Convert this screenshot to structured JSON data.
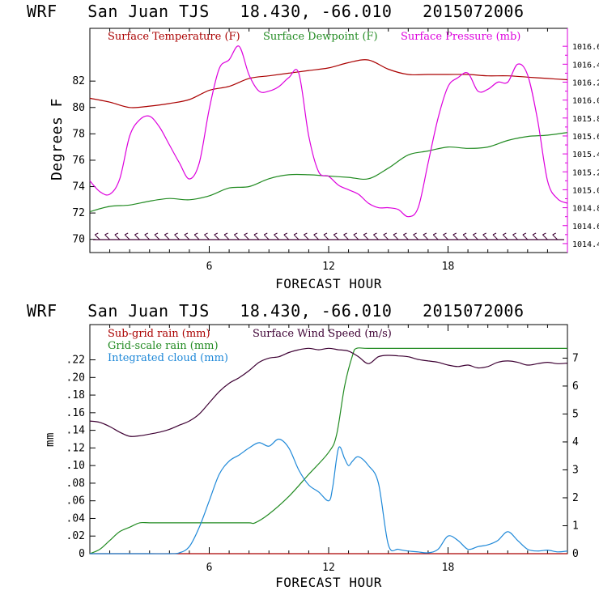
{
  "colors": {
    "temperature": "#aa0000",
    "dewpoint": "#228b22",
    "pressure": "#dd00dd",
    "wind_speed": "#3d0033",
    "subgrid_rain": "#aa0000",
    "gridscale_rain": "#228b22",
    "cloud": "#1e88d8",
    "wind_barbs": "#3d0033"
  },
  "chart_data": [
    {
      "type": "line",
      "title": "WRF   San Juan TJS   18.430, -66.010   2015072006",
      "xlabel": "FORECAST HOUR",
      "ylabel": "Degrees F",
      "xlim": [
        0,
        24
      ],
      "ylim": [
        69,
        86
      ],
      "y2lim": [
        1014.3,
        1016.8
      ],
      "x_ticks": [
        6,
        12,
        18
      ],
      "y_ticks": [
        70,
        72,
        74,
        76,
        78,
        80,
        82
      ],
      "y_tick_labels": [
        "70",
        "72",
        "74",
        "76",
        "78",
        "80",
        "82"
      ],
      "y2_ticks": [
        1014.4,
        1014.6,
        1014.8,
        1015.0,
        1015.2,
        1015.4,
        1015.6,
        1015.8,
        1016.0,
        1016.2,
        1016.4,
        1016.6
      ],
      "y2_tick_labels": [
        "1014.4",
        "1014.6",
        "1014.8",
        "1015.0",
        "1015.2",
        "1015.4",
        "1015.6",
        "1015.8",
        "1016.0",
        "1016.2",
        "1016.4",
        "1016.6"
      ],
      "legend": [
        "Surface Temperature (F)",
        "Surface Dewpoint (F)",
        "Surface Pressure (mb)"
      ],
      "series": [
        {
          "name": "Surface Temperature (F)",
          "axis": "left",
          "x": [
            0,
            1,
            2,
            3,
            4,
            5,
            6,
            7,
            8,
            9,
            10,
            11,
            12,
            13,
            14,
            15,
            16,
            17,
            18,
            19,
            20,
            21,
            22,
            23,
            24
          ],
          "values": [
            80.7,
            80.4,
            80.0,
            80.1,
            80.3,
            80.6,
            81.3,
            81.6,
            82.2,
            82.4,
            82.6,
            82.8,
            83.0,
            83.4,
            83.6,
            82.9,
            82.5,
            82.5,
            82.5,
            82.5,
            82.4,
            82.4,
            82.3,
            82.2,
            82.1
          ]
        },
        {
          "name": "Surface Dewpoint (F)",
          "axis": "left",
          "x": [
            0,
            1,
            2,
            3,
            4,
            5,
            6,
            7,
            8,
            9,
            10,
            11,
            12,
            13,
            14,
            15,
            16,
            17,
            18,
            19,
            20,
            21,
            22,
            23,
            24
          ],
          "values": [
            72.1,
            72.5,
            72.6,
            72.9,
            73.1,
            73.0,
            73.3,
            73.9,
            74.0,
            74.6,
            74.9,
            74.9,
            74.8,
            74.7,
            74.6,
            75.4,
            76.4,
            76.7,
            77.0,
            76.9,
            77.0,
            77.5,
            77.8,
            77.9,
            78.1
          ]
        },
        {
          "name": "Surface Pressure (mb)",
          "axis": "right",
          "x": [
            0,
            0.5,
            1,
            1.5,
            2,
            2.5,
            3,
            3.5,
            4,
            4.5,
            5,
            5.5,
            6,
            6.5,
            7,
            7.5,
            8,
            8.5,
            9,
            9.5,
            10,
            10.5,
            11,
            11.5,
            12,
            12.5,
            13,
            13.5,
            14,
            14.5,
            15,
            15.5,
            16,
            16.5,
            17,
            17.5,
            18,
            18.5,
            19,
            19.5,
            20,
            20.5,
            21,
            21.5,
            22,
            22.5,
            23,
            23.5,
            24
          ],
          "values": [
            1015.1,
            1014.98,
            1014.95,
            1015.12,
            1015.6,
            1015.78,
            1015.82,
            1015.7,
            1015.5,
            1015.3,
            1015.12,
            1015.3,
            1015.9,
            1016.35,
            1016.45,
            1016.6,
            1016.28,
            1016.1,
            1016.1,
            1016.15,
            1016.25,
            1016.3,
            1015.6,
            1015.2,
            1015.15,
            1015.05,
            1015.0,
            1014.95,
            1014.85,
            1014.8,
            1014.8,
            1014.78,
            1014.7,
            1014.8,
            1015.3,
            1015.8,
            1016.15,
            1016.25,
            1016.3,
            1016.1,
            1016.12,
            1016.2,
            1016.2,
            1016.4,
            1016.28,
            1015.78,
            1015.1,
            1014.9,
            1014.85
          ]
        }
      ],
      "wind_barbs_count": 48
    },
    {
      "type": "line",
      "title": "WRF   San Juan TJS   18.430, -66.010   2015072006",
      "xlabel": "FORECAST HOUR",
      "ylabel": "mm",
      "xlim": [
        0,
        24
      ],
      "ylim": [
        0,
        0.26
      ],
      "y2lim": [
        0,
        8.2
      ],
      "x_ticks": [
        6,
        12,
        18
      ],
      "y_ticks": [
        0,
        0.02,
        0.04,
        0.06,
        0.08,
        0.1,
        0.12,
        0.14,
        0.16,
        0.18,
        0.2,
        0.22
      ],
      "y_tick_labels": [
        "0",
        ".02",
        ".04",
        ".06",
        ".08",
        ".10",
        ".12",
        ".14",
        ".16",
        ".18",
        ".20",
        ".22"
      ],
      "y2_ticks": [
        0,
        1,
        2,
        3,
        4,
        5,
        6,
        7
      ],
      "y2_tick_labels": [
        "0",
        "1",
        "2",
        "3",
        "4",
        "5",
        "6",
        "7"
      ],
      "legend": [
        "Sub-grid rain (mm)",
        "Grid-scale rain (mm)",
        "Integrated cloud (mm)",
        "Surface Wind Speed (m/s)"
      ],
      "series": [
        {
          "name": "Sub-grid rain (mm)",
          "axis": "left",
          "x": [
            0,
            24
          ],
          "values": [
            0,
            0
          ]
        },
        {
          "name": "Grid-scale rain (mm)",
          "axis": "left",
          "x": [
            0,
            0.5,
            1,
            1.5,
            2,
            2.5,
            3,
            4,
            5,
            6,
            7,
            8,
            8.3,
            9,
            10,
            11,
            12,
            12.4,
            12.8,
            13.2,
            13.4,
            14,
            16,
            18,
            20,
            22,
            24
          ],
          "values": [
            0,
            0.005,
            0.015,
            0.025,
            0.03,
            0.035,
            0.035,
            0.035,
            0.035,
            0.035,
            0.035,
            0.035,
            0.035,
            0.045,
            0.065,
            0.09,
            0.115,
            0.135,
            0.19,
            0.225,
            0.233,
            0.233,
            0.233,
            0.233,
            0.233,
            0.233,
            0.233
          ]
        },
        {
          "name": "Integrated cloud (mm)",
          "axis": "left",
          "x": [
            0,
            1,
            2,
            3,
            4,
            4.5,
            5,
            5.5,
            6,
            6.5,
            7,
            7.5,
            8,
            8.5,
            9,
            9.5,
            10,
            10.5,
            11,
            11.5,
            12,
            12.2,
            12.5,
            12.8,
            13,
            13.2,
            13.5,
            14,
            14.5,
            15,
            15.5,
            16,
            16.5,
            17,
            17.5,
            18,
            18.5,
            19,
            19.5,
            20,
            20.5,
            21,
            21.5,
            22,
            22.5,
            23,
            23.5,
            24
          ],
          "values": [
            0,
            0,
            0,
            0,
            0,
            0.001,
            0.008,
            0.03,
            0.06,
            0.09,
            0.105,
            0.112,
            0.12,
            0.126,
            0.122,
            0.13,
            0.12,
            0.095,
            0.078,
            0.07,
            0.06,
            0.075,
            0.12,
            0.108,
            0.1,
            0.105,
            0.11,
            0.1,
            0.08,
            0.01,
            0.005,
            0.003,
            0.002,
            0.001,
            0.005,
            0.02,
            0.015,
            0.005,
            0.008,
            0.01,
            0.015,
            0.025,
            0.015,
            0.005,
            0.003,
            0.004,
            0.002,
            0.003
          ]
        },
        {
          "name": "Surface Wind Speed (m/s)",
          "axis": "right",
          "x": [
            0,
            0.5,
            1,
            1.5,
            2,
            2.5,
            3,
            3.5,
            4,
            4.5,
            5,
            5.5,
            6,
            6.5,
            7,
            7.5,
            8,
            8.5,
            9,
            9.5,
            10,
            10.5,
            11,
            11.5,
            12,
            12.5,
            13,
            13.5,
            14,
            14.5,
            15,
            15.5,
            16,
            16.5,
            17,
            17.5,
            18,
            18.5,
            19,
            19.5,
            20,
            20.5,
            21,
            21.5,
            22,
            22.5,
            23,
            23.5,
            24
          ],
          "values": [
            4.75,
            4.7,
            4.55,
            4.35,
            4.2,
            4.22,
            4.28,
            4.35,
            4.45,
            4.6,
            4.75,
            5.0,
            5.4,
            5.8,
            6.1,
            6.3,
            6.55,
            6.85,
            7.0,
            7.05,
            7.2,
            7.3,
            7.35,
            7.3,
            7.35,
            7.3,
            7.25,
            7.05,
            6.8,
            7.05,
            7.1,
            7.08,
            7.05,
            6.95,
            6.9,
            6.85,
            6.75,
            6.7,
            6.75,
            6.65,
            6.7,
            6.85,
            6.9,
            6.85,
            6.75,
            6.8,
            6.85,
            6.8,
            6.82
          ]
        }
      ]
    }
  ]
}
